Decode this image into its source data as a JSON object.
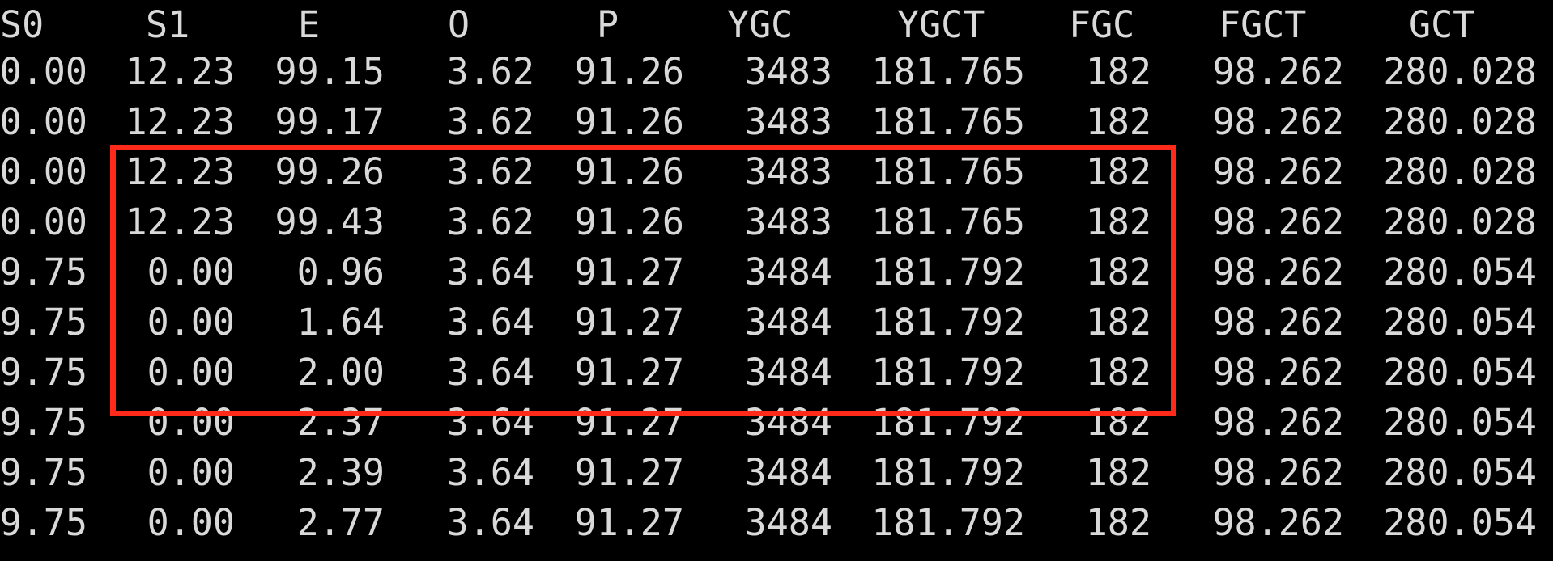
{
  "terminal": {
    "columns": [
      "S0",
      "S1",
      "E",
      "O",
      "P",
      "YGC",
      "YGCT",
      "FGC",
      "FGCT",
      "GCT"
    ],
    "rows": [
      [
        "0.00",
        "12.23",
        "99.15",
        "3.62",
        "91.26",
        "3483",
        "181.765",
        "182",
        "98.262",
        "280.028"
      ],
      [
        "0.00",
        "12.23",
        "99.17",
        "3.62",
        "91.26",
        "3483",
        "181.765",
        "182",
        "98.262",
        "280.028"
      ],
      [
        "0.00",
        "12.23",
        "99.26",
        "3.62",
        "91.26",
        "3483",
        "181.765",
        "182",
        "98.262",
        "280.028"
      ],
      [
        "0.00",
        "12.23",
        "99.43",
        "3.62",
        "91.26",
        "3483",
        "181.765",
        "182",
        "98.262",
        "280.028"
      ],
      [
        "9.75",
        "0.00",
        "0.96",
        "3.64",
        "91.27",
        "3484",
        "181.792",
        "182",
        "98.262",
        "280.054"
      ],
      [
        "9.75",
        "0.00",
        "1.64",
        "3.64",
        "91.27",
        "3484",
        "181.792",
        "182",
        "98.262",
        "280.054"
      ],
      [
        "9.75",
        "0.00",
        "2.00",
        "3.64",
        "91.27",
        "3484",
        "181.792",
        "182",
        "98.262",
        "280.054"
      ],
      [
        "9.75",
        "0.00",
        "2.37",
        "3.64",
        "91.27",
        "3484",
        "181.792",
        "182",
        "98.262",
        "280.054"
      ],
      [
        "9.75",
        "0.00",
        "2.39",
        "3.64",
        "91.27",
        "3484",
        "181.792",
        "182",
        "98.262",
        "280.054"
      ],
      [
        "9.75",
        "0.00",
        "2.77",
        "3.64",
        "91.27",
        "3484",
        "181.792",
        "182",
        "98.262",
        "280.054"
      ]
    ],
    "highlight": {
      "color": "#ff2a1a",
      "first_row_index": 2,
      "last_row_index": 6,
      "first_column_index": 1,
      "last_column_index": 7
    },
    "colors": {
      "background": "#000000",
      "text": "#d9d9d9"
    }
  }
}
